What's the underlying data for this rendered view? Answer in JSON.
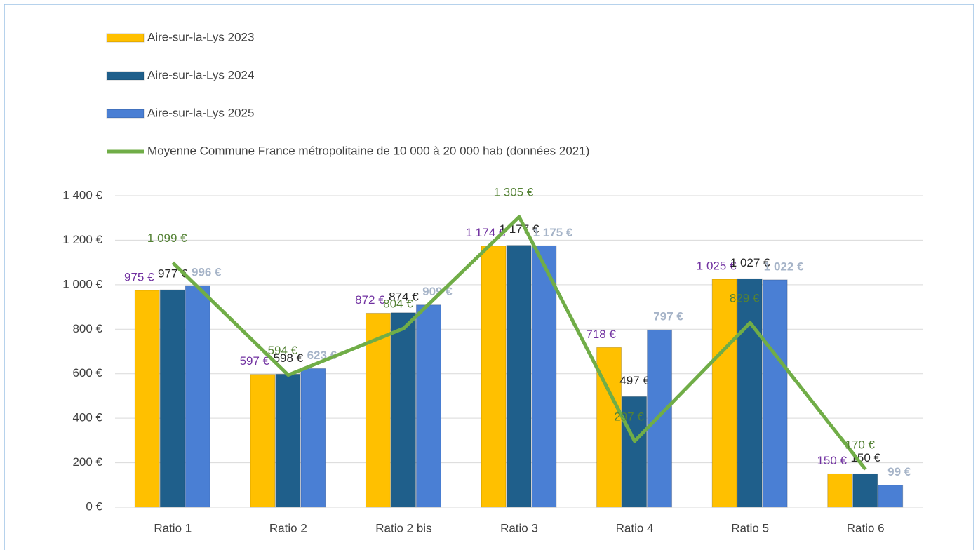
{
  "chart_data": {
    "type": "bar",
    "categories": [
      "Ratio 1",
      "Ratio 2",
      "Ratio 2 bis",
      "Ratio 3",
      "Ratio 4",
      "Ratio 5",
      "Ratio 6"
    ],
    "series": [
      {
        "name": "Aire-sur-la-Lys 2023",
        "color": "#ffc000",
        "label_color": "#7030a0",
        "values": [
          975,
          597,
          872,
          1174,
          718,
          1025,
          150
        ],
        "value_labels": [
          "975 €",
          "597 €",
          "872 €",
          "1 174 €",
          "718 €",
          "1 025 €",
          "150 €"
        ]
      },
      {
        "name": "Aire-sur-la-Lys 2024",
        "color": "#1f5f8b",
        "label_color": "#262626",
        "values": [
          977,
          598,
          874,
          1177,
          497,
          1027,
          150
        ],
        "value_labels": [
          "977 €",
          "598 €",
          "874 €",
          "1 177 €",
          "497 €",
          "1 027 €",
          "150 €"
        ]
      },
      {
        "name": "Aire-sur-la-Lys 2025",
        "color": "#4a7fd4",
        "label_color": "#a6b4c8",
        "values": [
          996,
          623,
          909,
          1175,
          797,
          1022,
          99
        ],
        "value_labels": [
          "996 €",
          "623 €",
          "909 €",
          "1 175 €",
          "797 €",
          "1 022 €",
          "99 €"
        ]
      },
      {
        "name": "Moyenne Commune France métropolitaine de 10 000 à 20 000 hab (données 2021)",
        "type": "line",
        "color": "#70ad47",
        "label_color": "#548235",
        "values": [
          1099,
          594,
          804,
          1305,
          297,
          829,
          170
        ],
        "value_labels": [
          "1 099 €",
          "594 €",
          "804 €",
          "1 305 €",
          "297 €",
          "829 €",
          "170 €"
        ]
      }
    ],
    "ylim": [
      0,
      1400
    ],
    "yticks": [
      {
        "value": 0,
        "label": "0 €"
      },
      {
        "value": 200,
        "label": "200 €"
      },
      {
        "value": 400,
        "label": "400 €"
      },
      {
        "value": 600,
        "label": "600 €"
      },
      {
        "value": 800,
        "label": "800 €"
      },
      {
        "value": 1000,
        "label": "1 000 €"
      },
      {
        "value": 1200,
        "label": "1 200 €"
      },
      {
        "value": 1400,
        "label": "1 400 €"
      }
    ],
    "grid": true,
    "legend": "top-left"
  }
}
